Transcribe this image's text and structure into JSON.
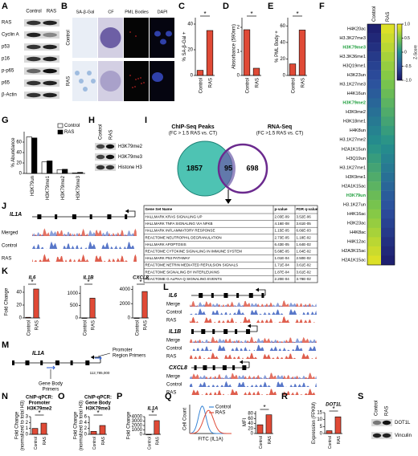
{
  "panels": {
    "A": {
      "letter": "A",
      "columns": [
        "Control",
        "RAS"
      ],
      "rows": [
        "RAS",
        "Cyclin A",
        "p53",
        "p16",
        "p-p65",
        "p65",
        "β-Actin"
      ]
    },
    "B": {
      "letter": "B",
      "columns": [
        "SA-β-Gal",
        "CF",
        "PML Bodies",
        "DAPI"
      ],
      "rows": [
        "Control",
        "RAS"
      ]
    },
    "C": {
      "letter": "C",
      "ylabel": [
        "% SA-β-Gal +"
      ],
      "categories": [
        "Control",
        "RAS"
      ],
      "values": [
        4,
        35
      ],
      "color": "#e04a36",
      "ylim": [
        0,
        45
      ],
      "yticks": [
        0,
        20,
        40
      ],
      "sig": "*"
    },
    "D": {
      "letter": "D",
      "ylabel": [
        "Absorbance (590nm)"
      ],
      "categories": [
        "Control",
        "RAS"
      ],
      "values": [
        1.9,
        0.3
      ],
      "color": "#e04a36",
      "ylim": [
        0,
        2.4
      ],
      "yticks": [
        0,
        1,
        2
      ],
      "sig": "*"
    },
    "E": {
      "letter": "E",
      "ylabel": [
        "% PML Body +"
      ],
      "categories": [
        "Control",
        "RAS"
      ],
      "values": [
        14,
        55
      ],
      "color": "#e04a36",
      "ylim": [
        0,
        70
      ],
      "yticks": [
        0,
        20,
        40,
        60
      ],
      "sig": "*"
    },
    "F": {
      "letter": "F",
      "columns": [
        "Control",
        "RAS"
      ],
      "rows": [
        {
          "label": "H4K20ac",
          "color": "#000000"
        },
        {
          "label": "H3.3K27me3",
          "color": "#000000"
        },
        {
          "label": "H3K79me3",
          "color": "#1e9e3c"
        },
        {
          "label": "H3.3K36me1",
          "color": "#000000"
        },
        {
          "label": "H3Q19me1",
          "color": "#000000"
        },
        {
          "label": "H3K23un",
          "color": "#000000"
        },
        {
          "label": "H3.1K27me3",
          "color": "#000000"
        },
        {
          "label": "H4K16un",
          "color": "#000000"
        },
        {
          "label": "H3K79me2",
          "color": "#1e9e3c"
        },
        {
          "label": "H3K9me2",
          "color": "#000000"
        },
        {
          "label": "H3K18me1",
          "color": "#000000"
        },
        {
          "label": "H4K8un",
          "color": "#000000"
        },
        {
          "label": "H3.1K27me2",
          "color": "#000000"
        },
        {
          "label": "H2A1K15un",
          "color": "#000000"
        },
        {
          "label": "H3Q19un",
          "color": "#000000"
        },
        {
          "label": "H3.1K27me1",
          "color": "#000000"
        },
        {
          "label": "H3K9me1",
          "color": "#000000"
        },
        {
          "label": "H2A1K15ac",
          "color": "#000000"
        },
        {
          "label": "H3K79un",
          "color": "#1e9e3c"
        },
        {
          "label": "H3.1K27un",
          "color": "#000000"
        },
        {
          "label": "H4K16ac",
          "color": "#000000"
        },
        {
          "label": "H3K23ac",
          "color": "#000000"
        },
        {
          "label": "H4K8ac",
          "color": "#000000"
        },
        {
          "label": "H4K12ac",
          "color": "#000000"
        },
        {
          "label": "H2A3K15ac",
          "color": "#000000"
        },
        {
          "label": "H2A1K15ac",
          "color": "#000000"
        }
      ],
      "values": [
        [
          -0.9,
          0.9
        ],
        [
          -0.83,
          0.83
        ],
        [
          -0.76,
          0.76
        ],
        [
          -0.68,
          0.68
        ],
        [
          -0.61,
          0.61
        ],
        [
          -0.54,
          0.54
        ],
        [
          -0.47,
          0.47
        ],
        [
          -0.4,
          0.4
        ],
        [
          -0.32,
          0.32
        ],
        [
          -0.25,
          0.25
        ],
        [
          -0.18,
          0.18
        ],
        [
          -0.11,
          0.11
        ],
        [
          -0.04,
          0.04
        ],
        [
          0.04,
          -0.04
        ],
        [
          0.11,
          -0.11
        ],
        [
          0.18,
          -0.18
        ],
        [
          0.25,
          -0.25
        ],
        [
          0.32,
          -0.32
        ],
        [
          0.4,
          -0.4
        ],
        [
          0.47,
          -0.47
        ],
        [
          0.54,
          -0.54
        ],
        [
          0.61,
          -0.61
        ],
        [
          0.68,
          -0.68
        ],
        [
          0.76,
          -0.76
        ],
        [
          0.83,
          -0.83
        ],
        [
          0.9,
          -0.9
        ]
      ],
      "zlim": [
        -1,
        1
      ],
      "zticks": [
        {
          "value": 1,
          "label": "1.0"
        },
        0.5,
        0,
        -0.5,
        {
          "value": -1,
          "label": "-1.0"
        }
      ],
      "zlabel": "Z-Score",
      "colors": [
        "#1b1464",
        "#2c4f9e",
        "#24908c",
        "#7cc64a",
        "#f4e61e"
      ]
    },
    "G": {
      "letter": "G",
      "ylabel": [
        "% Abundance"
      ],
      "categories": [
        "H3K79un",
        "H3K79me1",
        "H3K79me2",
        "H3K79me3"
      ],
      "series": [
        {
          "name": "Control",
          "color": "#ffffff",
          "values": [
            70,
            22,
            7,
            1
          ]
        },
        {
          "name": "RAS",
          "color": "#000000",
          "values": [
            68,
            24,
            8,
            2
          ]
        }
      ],
      "ylim": [
        0,
        80
      ],
      "yticks": [
        0,
        20,
        40,
        60
      ]
    },
    "H": {
      "letter": "H",
      "columns": [
        "Control",
        "RAS"
      ],
      "rows": [
        "H3K79me2",
        "H3K79me3",
        "Histone H3"
      ]
    },
    "I": {
      "letter": "I",
      "venn": {
        "left_title": [
          "ChIP-Seq Peaks",
          "(FC > 1.5 RAS vs. CT)"
        ],
        "right_title": [
          "RNA-Seq",
          "(FC >1.5 RAS vs. CT)"
        ],
        "left": 1857,
        "both": 95,
        "right": 698,
        "left_color": "#2fb8a6",
        "right_color": "#6b2a8e"
      },
      "table": {
        "header": [
          "Gene Set Name",
          "p-value",
          "FDR q-value"
        ],
        "rows": [
          [
            "HALLMARK KRAS SIGNALING UP",
            "2.03E-09",
            "3.52E-06"
          ],
          [
            "HALLMARK TNFA SIGNALING VIA NFKB",
            "4.16E-08",
            "3.61E-05"
          ],
          [
            "HALLMARK INFLAMMATORY RESPONSE",
            "1.15E-05",
            "6.66E-03"
          ],
          [
            "REACTOME NEUTROPHIL DEGRANULATION",
            "2.73E-05",
            "1.18E-02"
          ],
          [
            "HALLMARK APOPTOSIS",
            "6.43E-05",
            "1.64E-02"
          ],
          [
            "REACTOME CYTOKINE SIGNALING IN IMMUNE SYSTEM",
            "5.68E-05",
            "1.64E-02"
          ],
          [
            "HALLMARK P53 PATHWAY",
            "1.01E-04",
            "2.50E-02"
          ],
          [
            "REACTOME NETRIN MEDIATED REPULSION SIGNALS",
            "1.71E-04",
            "3.61E-02"
          ],
          [
            "REACTOME SIGNALING BY INTERLEUKINS",
            "1.87E-04",
            "3.61E-02"
          ],
          [
            "REACTOME G ALPHA Q SIGNALING EVENTS",
            "2.20E-04",
            "3.78E-02"
          ]
        ]
      }
    },
    "J": {
      "letter": "J",
      "gene": "IL1A",
      "tracks": [
        "Merged",
        "Control",
        "RAS"
      ]
    },
    "K": {
      "letter": "K",
      "ylabel": [
        "Fold Change"
      ],
      "charts": [
        {
          "title": [
            "IL6"
          ],
          "categories": [
            "Control",
            "RAS"
          ],
          "values": [
            1,
            45
          ],
          "color": "#e04a36",
          "ylim": [
            0,
            50
          ],
          "yticks": [
            0,
            20,
            40
          ],
          "sig": "*"
        },
        {
          "title": [
            "IL1B"
          ],
          "categories": [
            "Control",
            "RAS"
          ],
          "values": [
            1,
            800
          ],
          "color": "#e04a36",
          "ylim": [
            0,
            1300
          ],
          "yticks": [
            0,
            500,
            1000
          ],
          "sig": "*"
        },
        {
          "title": [
            "CXCL8"
          ],
          "categories": [
            "Control",
            "RAS"
          ],
          "values": [
            1,
            3700
          ],
          "color": "#e04a36",
          "ylim": [
            0,
            4500
          ],
          "yticks": [
            0,
            2000,
            4000
          ],
          "sig": "*"
        }
      ]
    },
    "L": {
      "letter": "L",
      "genes": [
        {
          "name": "IL6",
          "tracks": [
            "Merge",
            "Control",
            "RAS"
          ]
        },
        {
          "name": "IL1B",
          "tracks": [
            "Merge",
            "Control",
            "RAS"
          ]
        },
        {
          "name": "CXCL8",
          "tracks": [
            "Merge",
            "Control",
            "RAS"
          ]
        }
      ]
    },
    "M": {
      "letter": "M",
      "gene": "IL1A",
      "promoter_label": [
        "Promoter",
        "Region Primers"
      ],
      "body_label": [
        "Gene Body",
        "Primers"
      ],
      "coordinate": "112,785,000"
    },
    "N": {
      "letter": "N",
      "title": [
        "ChIP-qPCR:",
        "Promoter",
        "H3K79me2"
      ],
      "ylabel": [
        "Fold Change",
        "(normalized to total H3)"
      ],
      "categories": [
        "Control",
        "RAS"
      ],
      "values": [
        1,
        1.9
      ],
      "color": "#e04a36",
      "ylim": [
        0,
        3
      ],
      "yticks": [
        0,
        1,
        2,
        3
      ],
      "sig": "*"
    },
    "O": {
      "letter": "O",
      "title": [
        "ChIP-qPCR:",
        "Gene Body",
        "H3K79me3"
      ],
      "ylabel": [
        "Fold Change",
        "(normalized to total H3)"
      ],
      "categories": [
        "Control",
        "RAS"
      ],
      "values": [
        1,
        3
      ],
      "color": "#e04a36",
      "ylim": [
        0,
        6
      ],
      "yticks": [
        0,
        2,
        4,
        6
      ],
      "sig": "*"
    },
    "P": {
      "letter": "P",
      "title": [
        "IL1A"
      ],
      "ylabel": [
        "Fold Change"
      ],
      "categories": [
        "Control",
        "RAS"
      ],
      "values": [
        1,
        3100
      ],
      "color": "#e04a36",
      "ylim": [
        0,
        4000
      ],
      "yticks": [
        0,
        1000,
        2000,
        3000,
        4000
      ],
      "sig": "*"
    },
    "Q": {
      "letter": "Q",
      "histogram": {
        "series": [
          {
            "name": "Control",
            "color": "#3a86d6"
          },
          {
            "name": "RAS",
            "color": "#e04a36"
          }
        ],
        "xlabel": "FITC (IL1A)",
        "ylabel": "Cell Count"
      },
      "bar": {
        "ylabel": [
          "MFI"
        ],
        "categories": [
          "Control",
          "RAS"
        ],
        "values": [
          35,
          75
        ],
        "color": "#e04a36",
        "ylim": [
          0,
          90
        ],
        "yticks": [
          0,
          20,
          40,
          60,
          80
        ],
        "sig": "*"
      }
    },
    "R": {
      "letter": "R",
      "title": [
        "DOT1L"
      ],
      "ylabel": [
        "Expression (FPKM)"
      ],
      "categories": [
        "Control",
        "RAS"
      ],
      "values": [
        2,
        12
      ],
      "color": "#e04a36",
      "ylim": [
        0,
        15
      ],
      "yticks": [
        0,
        5,
        10,
        15
      ],
      "sig": "*"
    },
    "S": {
      "letter": "S",
      "columns": [
        "Control",
        "RAS"
      ],
      "rows": [
        "DOT1L",
        "Vinculin"
      ]
    }
  }
}
